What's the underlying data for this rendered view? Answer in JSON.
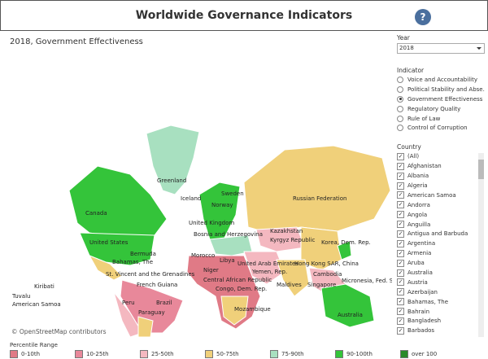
{
  "header": {
    "title": "Worldwide Governance Indicators",
    "help": "?"
  },
  "map": {
    "title": "2018, Government Effectiveness",
    "attribution": "© OpenStreetMap contributors",
    "labels": [
      "Greenland",
      "Iceland",
      "Canada",
      "United States",
      "Bermuda",
      "Bahamas, The",
      "St. Vincent and the Grenadines",
      "French Guiana",
      "Brazil",
      "Peru",
      "Paraguay",
      "Kiribati",
      "Tuvalu",
      "American Samoa",
      "Sweden",
      "Norway",
      "United Kingdom",
      "Russian Federation",
      "Kazakhstan",
      "Kyrgyz Republic",
      "Korea, Dem. Rep.",
      "Morocco",
      "Libya",
      "Niger",
      "Central African Republic",
      "Congo, Dem. Rep.",
      "Mozambique",
      "United Arab Emirates",
      "Yemen, Rep.",
      "Maldives",
      "Hong Kong SAR, China",
      "Cambodia",
      "Singapore",
      "Micronesia, Fed. Sts.",
      "Australia",
      "Bosnia and Herzegovina"
    ]
  },
  "sidebar": {
    "year_label": "Year",
    "year": "2018",
    "indicator_label": "Indicator",
    "indicators": [
      "Voice and Accountability",
      "Political Stability and Abse...",
      "Government Effectiveness",
      "Regulatory Quality",
      "Rule of Law",
      "Control of Corruption"
    ],
    "country_label": "Country",
    "countries": [
      "(All)",
      "Afghanistan",
      "Albania",
      "Algeria",
      "American Samoa",
      "Andorra",
      "Angola",
      "Anguilla",
      "Antigua and Barbuda",
      "Argentina",
      "Armenia",
      "Aruba",
      "Australia",
      "Austria",
      "Azerbaijan",
      "Bahamas, The",
      "Bahrain",
      "Bangladesh",
      "Barbados"
    ]
  },
  "legend": {
    "title": "Percentile Range",
    "items": [
      "0-10th",
      "10-25th",
      "25-50th",
      "50-75th",
      "75-90th",
      "90-100th",
      "over 100"
    ]
  }
}
